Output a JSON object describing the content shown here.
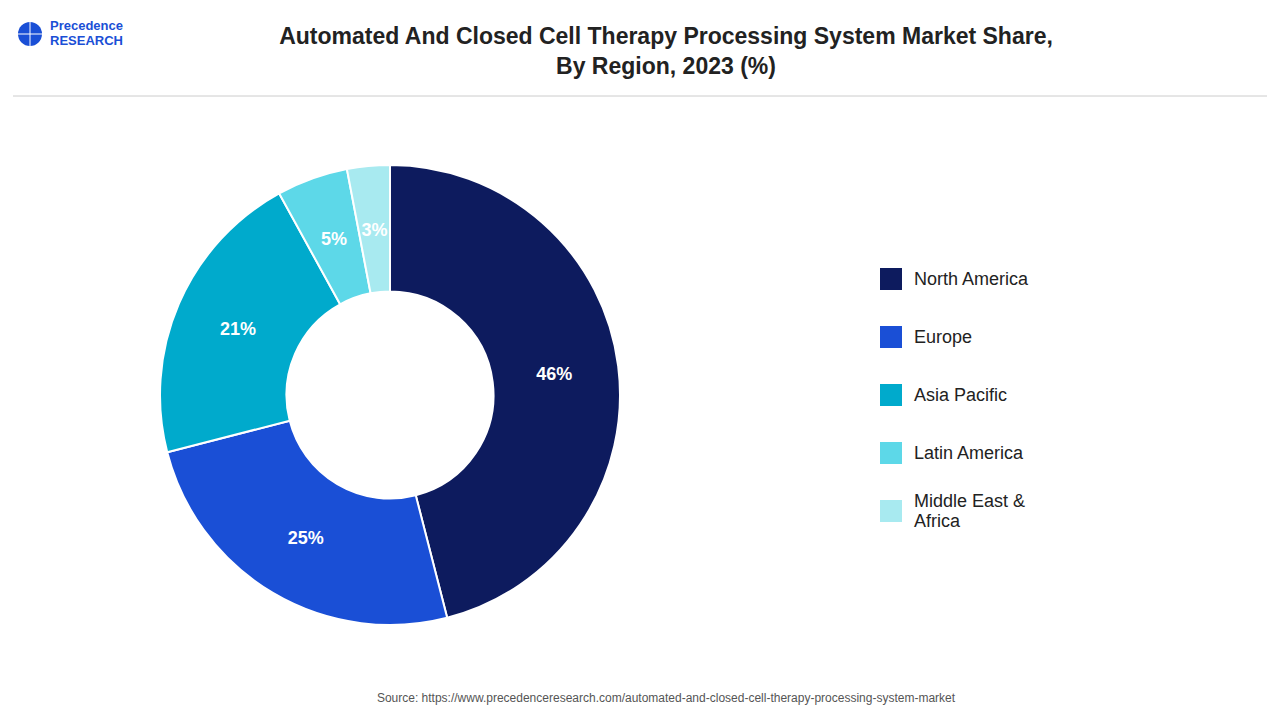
{
  "chart_data": {
    "type": "donut",
    "title": "Automated And Closed Cell Therapy Processing System Market Share,\nBy Region, 2023 (%)",
    "categories": [
      "North America",
      "Europe",
      "Asia Pacific",
      "Latin America",
      "Middle East &\nAfrica"
    ],
    "values": [
      46,
      25,
      21,
      5,
      3
    ],
    "value_labels": [
      "46%",
      "25%",
      "21%",
      "5%",
      "3%"
    ],
    "colors": [
      "#0d1b5e",
      "#1a4fd6",
      "#00aacc",
      "#5dd8e8",
      "#a8eaf0"
    ],
    "data_labels": true,
    "legend": "right",
    "source": "Source: https://www.precedenceresearch.com/automated-and-closed-cell-therapy-processing-system-market",
    "annotations": [
      "Precedence\nRESEARCH"
    ]
  }
}
